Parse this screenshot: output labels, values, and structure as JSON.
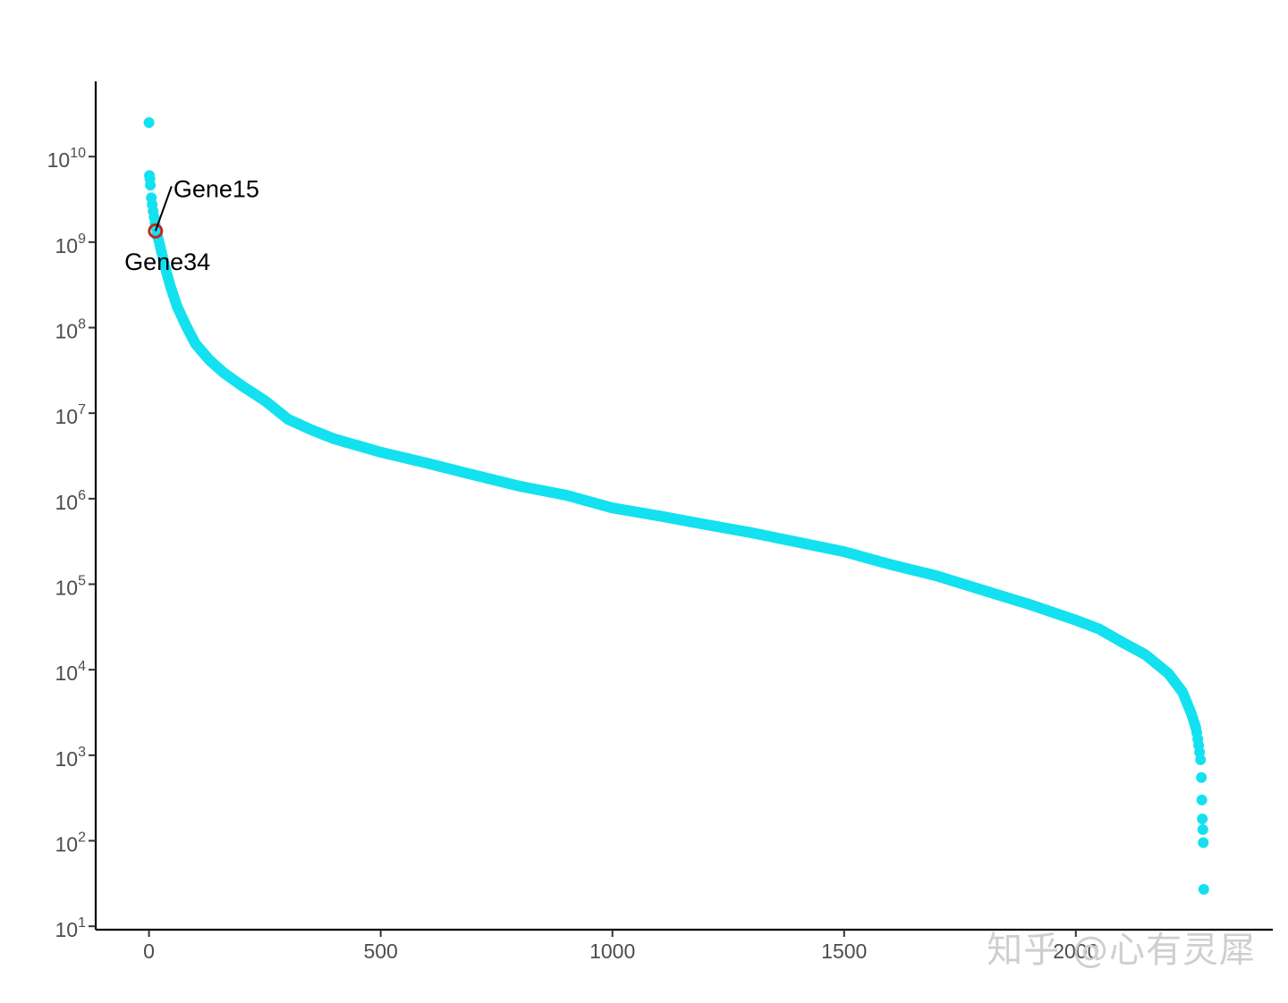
{
  "chart_data": {
    "type": "scatter",
    "title": "",
    "xlabel": "",
    "ylabel": "",
    "xlim": [
      -115,
      2425
    ],
    "ylim_log10": [
      0.96,
      10.88
    ],
    "y_scale": "log10",
    "grid": false,
    "legend": "none",
    "x_ticks": [
      0,
      500,
      1000,
      1500,
      2000
    ],
    "x_tick_labels": [
      "0",
      "500",
      "1000",
      "1500",
      "2000"
    ],
    "y_ticks": [
      {
        "exp": 1,
        "base": "10",
        "sup": "1"
      },
      {
        "exp": 2,
        "base": "10",
        "sup": "2"
      },
      {
        "exp": 3,
        "base": "10",
        "sup": "3"
      },
      {
        "exp": 4,
        "base": "10",
        "sup": "4"
      },
      {
        "exp": 5,
        "base": "10",
        "sup": "5"
      },
      {
        "exp": 6,
        "base": "10",
        "sup": "6"
      },
      {
        "exp": 7,
        "base": "10",
        "sup": "7"
      },
      {
        "exp": 8,
        "base": "10",
        "sup": "8"
      },
      {
        "exp": 9,
        "base": "10",
        "sup": "9"
      },
      {
        "exp": 10,
        "base": "10",
        "sup": "10"
      }
    ],
    "series": [
      {
        "color": "#14e1ef",
        "point_count": 2315,
        "curve": [
          [
            0,
            25000000000.0
          ],
          [
            1,
            6000000000.0
          ],
          [
            2,
            5500000000.0
          ],
          [
            5,
            3300000000.0
          ],
          [
            8,
            2500000000.0
          ],
          [
            12,
            1800000000.0
          ],
          [
            18,
            1200000000.0
          ],
          [
            25,
            850000000.0
          ],
          [
            35,
            500000000.0
          ],
          [
            45,
            320000000.0
          ],
          [
            60,
            180000000.0
          ],
          [
            80,
            105000000.0
          ],
          [
            100,
            65000000.0
          ],
          [
            130,
            42000000.0
          ],
          [
            160,
            30000000.0
          ],
          [
            200,
            21000000.0
          ],
          [
            250,
            14000000.0
          ],
          [
            300,
            8500000.0
          ],
          [
            350,
            6400000.0
          ],
          [
            400,
            5000000.0
          ],
          [
            500,
            3500000.0
          ],
          [
            600,
            2600000.0
          ],
          [
            700,
            1900000.0
          ],
          [
            800,
            1400000.0
          ],
          [
            900,
            1100000.0
          ],
          [
            1000,
            780000.0
          ],
          [
            1100,
            630000.0
          ],
          [
            1200,
            500000.0
          ],
          [
            1300,
            400000.0
          ],
          [
            1400,
            310000.0
          ],
          [
            1500,
            240000.0
          ],
          [
            1600,
            170000.0
          ],
          [
            1700,
            125000.0
          ],
          [
            1800,
            85000.0
          ],
          [
            1900,
            58000.0
          ],
          [
            2000,
            38000.0
          ],
          [
            2050,
            30000.0
          ],
          [
            2100,
            21000.0
          ],
          [
            2150,
            15000.0
          ],
          [
            2200,
            9000.0
          ],
          [
            2230,
            5500.0
          ],
          [
            2250,
            3000.0
          ],
          [
            2260,
            2000.0
          ],
          [
            2266,
            1200.0
          ],
          [
            2270,
            800.0
          ]
        ],
        "tail_points": [
          [
            2271,
            550
          ],
          [
            2272,
            300
          ],
          [
            2273,
            180
          ],
          [
            2274,
            135
          ],
          [
            2275,
            95
          ],
          [
            2276,
            27
          ]
        ]
      }
    ],
    "highlighted": [
      {
        "label": "Gene15",
        "x": 14,
        "y": 1350000000.0,
        "ring_color": "#c0281e"
      },
      {
        "label": "Gene34",
        "x": 32,
        "y": 560000000.0
      }
    ]
  },
  "watermark": "知乎 @心有灵犀"
}
